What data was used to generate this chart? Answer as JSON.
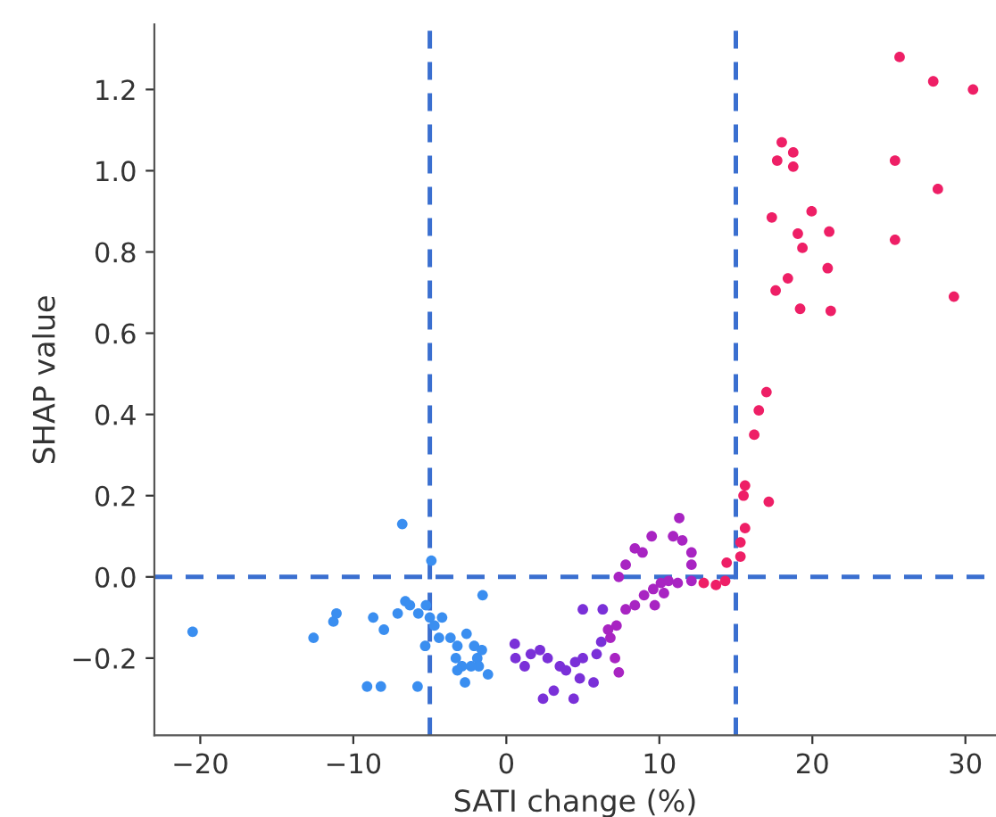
{
  "chart_data": {
    "type": "scatter",
    "xlabel": "SATI change (%)",
    "ylabel": "SHAP value",
    "xlim": [
      -23,
      32
    ],
    "ylim": [
      -0.39,
      1.36
    ],
    "xticks": [
      {
        "value": -20,
        "label": "−20"
      },
      {
        "value": -10,
        "label": "−10"
      },
      {
        "value": 0,
        "label": "0"
      },
      {
        "value": 10,
        "label": "10"
      },
      {
        "value": 20,
        "label": "20"
      },
      {
        "value": 30,
        "label": "30"
      }
    ],
    "yticks": [
      {
        "value": -0.2,
        "label": "−0.2"
      },
      {
        "value": 0,
        "label": "0.0"
      },
      {
        "value": 0.2,
        "label": "0.2"
      },
      {
        "value": 0.4,
        "label": "0.4"
      },
      {
        "value": 0.6,
        "label": "0.6"
      },
      {
        "value": 0.8,
        "label": "0.8"
      },
      {
        "value": 1.0,
        "label": "1.0"
      },
      {
        "value": 1.2,
        "label": "1.2"
      }
    ],
    "marker": "circle",
    "grid": false,
    "ref_lines": [
      {
        "axis": "x",
        "value": -5,
        "color": "#3a6fd0",
        "line_style": "dashed"
      },
      {
        "axis": "x",
        "value": 15,
        "color": "#3a6fd0",
        "line_style": "dashed"
      },
      {
        "axis": "y",
        "value": 0,
        "color": "#3a6fd0",
        "line_style": "dashed"
      }
    ],
    "series": [
      {
        "color": "#3a8ef0",
        "x": [
          -20.5,
          -12.6,
          -11.3,
          -11.1,
          -8.7,
          -8.0,
          -9.1,
          -8.2,
          -5.8,
          -6.8,
          -4.9,
          -7.1,
          -6.6,
          -6.3,
          -5.75,
          -5.25,
          -5.0,
          -4.7,
          -4.2,
          -5.3,
          -4.4,
          -3.65,
          -3.2,
          -2.6,
          -2.1,
          -3.3,
          -2.9,
          -3.2,
          -2.7,
          -1.9,
          -1.6,
          -1.8,
          -1.2,
          -1.55,
          -2.3
        ],
        "values": [
          -0.135,
          -0.15,
          -0.11,
          -0.09,
          -0.1,
          -0.13,
          -0.27,
          -0.27,
          -0.27,
          0.13,
          0.04,
          -0.09,
          -0.06,
          -0.07,
          -0.09,
          -0.07,
          -0.1,
          -0.12,
          -0.1,
          -0.17,
          -0.15,
          -0.15,
          -0.17,
          -0.14,
          -0.17,
          -0.2,
          -0.22,
          -0.23,
          -0.26,
          -0.2,
          -0.18,
          -0.22,
          -0.24,
          -0.045,
          -0.22
        ]
      },
      {
        "color": "#7a30d8",
        "x": [
          0.55,
          0.6,
          1.2,
          1.6,
          2.2,
          2.7,
          2.4,
          3.1,
          4.4,
          3.5,
          3.9,
          4.5,
          5.0,
          5.0,
          6.3,
          5.7,
          4.8,
          5.9,
          6.2
        ],
        "values": [
          -0.165,
          -0.2,
          -0.22,
          -0.19,
          -0.18,
          -0.2,
          -0.3,
          -0.28,
          -0.3,
          -0.22,
          -0.23,
          -0.21,
          -0.2,
          -0.08,
          -0.08,
          -0.26,
          -0.25,
          -0.19,
          -0.16
        ]
      },
      {
        "color": "#a824c2",
        "x": [
          6.65,
          6.8,
          7.35,
          7.1,
          7.2,
          7.8,
          8.4,
          9.0,
          9.6,
          10.1,
          10.6,
          11.2,
          12.1,
          7.35,
          7.8,
          8.4,
          8.9,
          9.5,
          10.9,
          11.3,
          11.5,
          12.1,
          12.1,
          9.7,
          10.3
        ],
        "values": [
          -0.13,
          -0.15,
          -0.235,
          -0.2,
          -0.12,
          -0.08,
          -0.07,
          -0.045,
          -0.03,
          -0.015,
          -0.01,
          -0.015,
          -0.01,
          0.0,
          0.03,
          0.07,
          0.06,
          0.1,
          0.1,
          0.145,
          0.09,
          0.06,
          0.03,
          -0.07,
          -0.04
        ]
      },
      {
        "color": "#ee1f66",
        "x": [
          12.9,
          13.7,
          14.3,
          14.4,
          15.6,
          15.5,
          17.15,
          16.2,
          16.5,
          17.0,
          15.6,
          15.3,
          15.3,
          17.35,
          17.6,
          18.4,
          17.7,
          18.0,
          18.75,
          18.75,
          19.05,
          19.35,
          19.95,
          19.2,
          21.0,
          21.1,
          21.2,
          25.7,
          25.4,
          25.4,
          27.9,
          28.2,
          29.25,
          30.5
        ],
        "values": [
          -0.015,
          -0.02,
          -0.01,
          0.035,
          0.225,
          0.2,
          0.185,
          0.35,
          0.41,
          0.455,
          0.12,
          0.085,
          0.05,
          0.885,
          0.705,
          0.735,
          1.025,
          1.07,
          1.045,
          1.01,
          0.845,
          0.81,
          0.9,
          0.66,
          0.76,
          0.85,
          0.655,
          1.28,
          1.025,
          0.83,
          1.22,
          0.955,
          0.69,
          1.2
        ]
      }
    ]
  }
}
